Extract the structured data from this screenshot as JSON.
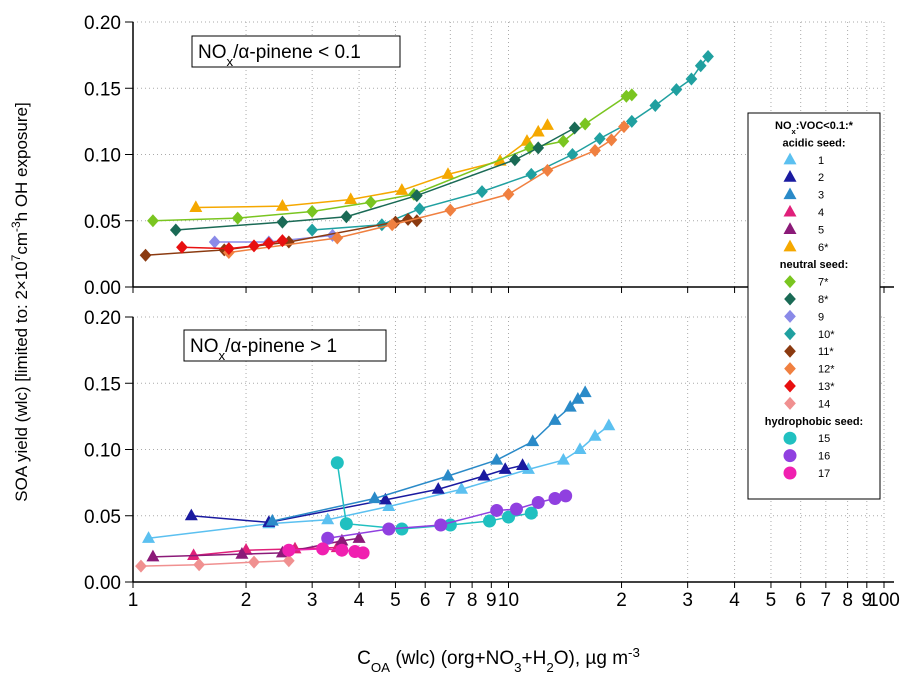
{
  "chart_data": {
    "type": "scatter",
    "x_scale": "log",
    "xlim": [
      1,
      100
    ],
    "xticks": [
      1,
      2,
      3,
      4,
      5,
      6,
      7,
      8,
      9,
      10,
      {
        "value": 20,
        "label": "2"
      },
      {
        "value": 30,
        "label": "3"
      },
      {
        "value": 40,
        "label": "4"
      },
      {
        "value": 50,
        "label": "5"
      },
      {
        "value": 60,
        "label": "6"
      },
      {
        "value": 70,
        "label": "7"
      },
      {
        "value": 80,
        "label": "8"
      },
      {
        "value": 90,
        "label": "9"
      },
      100
    ],
    "grid": true,
    "x_label": [
      {
        "text": "C"
      },
      {
        "text": "OA",
        "shift": "sub"
      },
      {
        "text": " (wlc) (org+NO"
      },
      {
        "text": "3",
        "shift": "sub"
      },
      {
        "text": "+H"
      },
      {
        "text": "2",
        "shift": "sub"
      },
      {
        "text": "O), µg m"
      },
      {
        "text": "-3",
        "shift": "super"
      }
    ],
    "y_label": [
      {
        "text": "SOA yield (wlc) "
      },
      {
        "text": "[limited to: 2×10"
      },
      {
        "text": "7",
        "shift": "super"
      },
      {
        "text": "cm"
      },
      {
        "text": "-3",
        "shift": "super"
      },
      {
        "text": "h OH exposure]"
      }
    ],
    "panels": [
      {
        "annotation": [
          {
            "text": "NO"
          },
          {
            "text": "x",
            "shift": "sub"
          },
          {
            "text": "/α-pinene < 0.1"
          }
        ],
        "ylim": [
          0,
          0.2
        ],
        "yticks": [
          {
            "value": 0,
            "label": "0.00"
          },
          {
            "value": 0.05,
            "label": "0.05"
          },
          {
            "value": 0.1,
            "label": "0.10"
          },
          {
            "value": 0.15,
            "label": "0.15"
          },
          {
            "value": 0.2,
            "label": "0.20"
          }
        ]
      },
      {
        "annotation": [
          {
            "text": "NO"
          },
          {
            "text": "x",
            "shift": "sub"
          },
          {
            "text": "/α-pinene > 1"
          }
        ],
        "ylim": [
          0,
          0.2
        ],
        "yticks": [
          {
            "value": 0,
            "label": "0.00"
          },
          {
            "value": 0.05,
            "label": "0.05"
          },
          {
            "value": 0.1,
            "label": "0.10"
          },
          {
            "value": 0.15,
            "label": "0.15"
          },
          {
            "value": 0.2,
            "label": "0.20"
          }
        ]
      }
    ],
    "legend_title": [
      {
        "text": "NO"
      },
      {
        "text": "x",
        "shift": "sub"
      },
      {
        "text": ":VOC<0.1:*"
      }
    ],
    "groups": [
      "acidic seed:",
      "neutral seed:",
      "hydrophobic seed:"
    ],
    "series": [
      {
        "name": "1",
        "color": "#5bc0f0",
        "marker": "triangle",
        "group": 0,
        "panel": 1,
        "x": [
          1.1,
          2.3,
          3.3,
          4.8,
          7.5,
          11.3,
          14,
          15.5,
          17,
          18.5
        ],
        "values": [
          0.033,
          0.044,
          0.047,
          0.057,
          0.07,
          0.085,
          0.092,
          0.1,
          0.11,
          0.118
        ]
      },
      {
        "name": "2",
        "color": "#1a1aa0",
        "marker": "triangle",
        "group": 0,
        "panel": 1,
        "x": [
          1.43,
          2.3,
          4.7,
          6.5,
          8.6,
          9.8,
          10.9
        ],
        "values": [
          0.05,
          0.045,
          0.062,
          0.07,
          0.08,
          0.085,
          0.088
        ]
      },
      {
        "name": "3",
        "color": "#2a8ac8",
        "marker": "triangle",
        "group": 0,
        "panel": 1,
        "x": [
          2.35,
          4.4,
          6.9,
          9.3,
          11.6,
          13.3,
          14.6,
          15.3,
          16
        ],
        "values": [
          0.046,
          0.063,
          0.08,
          0.092,
          0.106,
          0.122,
          0.132,
          0.138,
          0.143
        ]
      },
      {
        "name": "4",
        "color": "#e0207a",
        "marker": "triangle",
        "group": 0,
        "panel": 1,
        "x": [
          1.45,
          2.0,
          2.7,
          3.5
        ],
        "values": [
          0.02,
          0.024,
          0.025,
          0.026
        ]
      },
      {
        "name": "5",
        "color": "#8b1a78",
        "marker": "triangle",
        "group": 0,
        "panel": 1,
        "x": [
          1.13,
          1.95,
          2.5,
          3.6,
          4.0
        ],
        "values": [
          0.019,
          0.021,
          0.022,
          0.031,
          0.033
        ]
      },
      {
        "name": "6*",
        "color": "#f5a800",
        "marker": "triangle",
        "group": 0,
        "panel": 0,
        "x": [
          1.47,
          2.5,
          3.8,
          5.2,
          6.9,
          9.5,
          11.2,
          12,
          12.7
        ],
        "values": [
          0.06,
          0.061,
          0.066,
          0.073,
          0.085,
          0.095,
          0.11,
          0.117,
          0.122
        ]
      },
      {
        "name": "7*",
        "color": "#7ac520",
        "marker": "diamond",
        "group": 1,
        "panel": 0,
        "x": [
          1.13,
          1.9,
          3.0,
          4.3,
          5.6,
          11.4,
          14,
          16,
          20.6,
          21.3
        ],
        "values": [
          0.05,
          0.052,
          0.057,
          0.064,
          0.07,
          0.105,
          0.11,
          0.123,
          0.144,
          0.145
        ]
      },
      {
        "name": "8*",
        "color": "#1a6a55",
        "marker": "diamond",
        "group": 1,
        "panel": 0,
        "x": [
          1.3,
          2.5,
          3.7,
          5.7,
          10.4,
          12,
          15
        ],
        "values": [
          0.043,
          0.049,
          0.053,
          0.069,
          0.096,
          0.105,
          0.12
        ]
      },
      {
        "name": "9",
        "color": "#8a8ae8",
        "marker": "diamond",
        "group": 1,
        "panel": 0,
        "x": [
          1.65,
          2.3,
          3.4
        ],
        "values": [
          0.034,
          0.034,
          0.039
        ]
      },
      {
        "name": "10*",
        "color": "#20a0a0",
        "marker": "diamond",
        "group": 1,
        "panel": 0,
        "x": [
          3.0,
          4.6,
          5.8,
          8.5,
          11.5,
          14.8,
          17.5,
          21.3,
          24.6,
          28,
          30.7,
          32.5,
          34
        ],
        "values": [
          0.043,
          0.047,
          0.059,
          0.072,
          0.085,
          0.1,
          0.112,
          0.125,
          0.137,
          0.149,
          0.157,
          0.167,
          0.174
        ]
      },
      {
        "name": "11*",
        "color": "#8b3a10",
        "marker": "diamond",
        "group": 1,
        "panel": 0,
        "x": [
          1.08,
          1.75,
          2.6,
          5.0,
          5.4,
          5.7
        ],
        "values": [
          0.024,
          0.028,
          0.034,
          0.049,
          0.051,
          0.05
        ]
      },
      {
        "name": "12*",
        "color": "#f08040",
        "marker": "diamond",
        "group": 1,
        "panel": 0,
        "x": [
          1.8,
          3.5,
          4.9,
          7.0,
          10,
          12.7,
          17,
          18.8,
          20.3
        ],
        "values": [
          0.026,
          0.037,
          0.047,
          0.058,
          0.07,
          0.088,
          0.103,
          0.111,
          0.121
        ]
      },
      {
        "name": "13*",
        "color": "#e81010",
        "marker": "diamond",
        "group": 1,
        "panel": 0,
        "x": [
          1.35,
          1.8,
          2.1,
          2.3,
          2.5
        ],
        "values": [
          0.03,
          0.029,
          0.031,
          0.033,
          0.035
        ]
      },
      {
        "name": "14",
        "color": "#f09090",
        "marker": "diamond",
        "group": 1,
        "panel": 1,
        "x": [
          1.05,
          1.5,
          2.1,
          2.6
        ],
        "values": [
          0.012,
          0.013,
          0.015,
          0.016
        ]
      },
      {
        "name": "15",
        "color": "#20c0c0",
        "marker": "circle",
        "group": 2,
        "panel": 1,
        "x": [
          3.5,
          3.7,
          5.2,
          7.0,
          8.9,
          10,
          11.5
        ],
        "values": [
          0.09,
          0.044,
          0.04,
          0.043,
          0.046,
          0.049,
          0.052
        ]
      },
      {
        "name": "16",
        "color": "#9040e0",
        "marker": "circle",
        "group": 2,
        "panel": 1,
        "x": [
          3.3,
          4.8,
          6.6,
          9.3,
          10.5,
          12,
          13.3,
          14.2
        ],
        "values": [
          0.033,
          0.04,
          0.043,
          0.054,
          0.055,
          0.06,
          0.063,
          0.065
        ]
      },
      {
        "name": "17",
        "color": "#f020b0",
        "marker": "circle",
        "group": 2,
        "panel": 1,
        "x": [
          2.6,
          3.2,
          3.6,
          3.9,
          4.1
        ],
        "values": [
          0.024,
          0.025,
          0.024,
          0.023,
          0.022
        ]
      }
    ]
  }
}
